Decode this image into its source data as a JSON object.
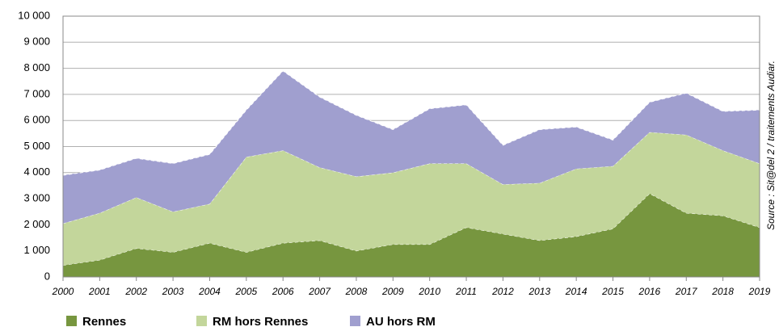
{
  "chart_data": {
    "type": "stacked_area",
    "categories": [
      "2000",
      "2001",
      "2002",
      "2003",
      "2004",
      "2005",
      "2006",
      "2007",
      "2008",
      "2009",
      "2010",
      "2011",
      "2012",
      "2013",
      "2014",
      "2015",
      "2016",
      "2017",
      "2018",
      "2019"
    ],
    "series": [
      {
        "name": "Rennes",
        "color": "#77963f",
        "values": [
          450,
          650,
          1100,
          950,
          1300,
          950,
          1300,
          1400,
          1000,
          1250,
          1250,
          1900,
          1650,
          1400,
          1550,
          1850,
          3200,
          2450,
          2350,
          1900
        ]
      },
      {
        "name": "RM hors Rennes",
        "color": "#c3d69b",
        "values": [
          1600,
          1800,
          1950,
          1550,
          1500,
          3650,
          3550,
          2800,
          2850,
          2750,
          3100,
          2450,
          1900,
          2200,
          2600,
          2400,
          2350,
          3000,
          2500,
          2450
        ]
      },
      {
        "name": "AU hors RM",
        "color": "#a09fcf",
        "values": [
          1850,
          1650,
          1500,
          1850,
          1900,
          1800,
          3050,
          2700,
          2350,
          1650,
          2100,
          2250,
          1500,
          2050,
          1600,
          1000,
          1150,
          1600,
          1500,
          2050
        ]
      }
    ],
    "ylim": [
      0,
      10000
    ],
    "yticks": [
      0,
      {
        "value": 1000,
        "label": "1 000"
      },
      {
        "value": 2000,
        "label": "2 000"
      },
      {
        "value": 3000,
        "label": "3 000"
      },
      {
        "value": 4000,
        "label": "4 000"
      },
      {
        "value": 5000,
        "label": "5 000"
      },
      {
        "value": 6000,
        "label": "6 000"
      },
      {
        "value": 7000,
        "label": "7 000"
      },
      {
        "value": 8000,
        "label": "8 000"
      },
      {
        "value": 9000,
        "label": "9 000"
      },
      {
        "value": 10000,
        "label": "10 000"
      }
    ],
    "grid": true,
    "source": "Source : Sit@del 2 / traitements Audiar."
  }
}
